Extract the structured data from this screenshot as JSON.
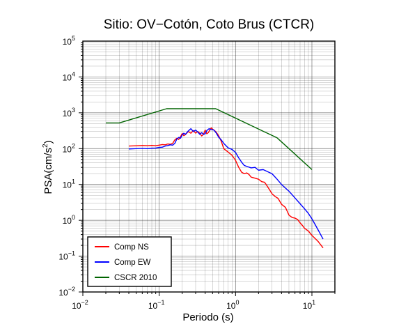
{
  "chart_data": {
    "type": "line",
    "title": "Sitio: OV−Cotón, Coto Brus (CTCR)",
    "xlabel": "Periodo (s)",
    "ylabel_base": "PSA(cm/s",
    "ylabel_exp": "2",
    "ylabel_close": ")",
    "x_scale": "log",
    "y_scale": "log",
    "xlim": [
      0.01,
      20
    ],
    "ylim": [
      0.01,
      100000
    ],
    "grid": true,
    "legend_position": "bottom-left",
    "x_ticks": [
      {
        "base": "10",
        "exp": "−2",
        "value": 0.01
      },
      {
        "base": "10",
        "exp": "−1",
        "value": 0.1
      },
      {
        "base": "10",
        "exp": "0",
        "value": 1
      },
      {
        "base": "10",
        "exp": "1",
        "value": 10
      }
    ],
    "y_ticks": [
      {
        "base": "10",
        "exp": "−2",
        "value": 0.01
      },
      {
        "base": "10",
        "exp": "−1",
        "value": 0.1
      },
      {
        "base": "10",
        "exp": "0",
        "value": 1
      },
      {
        "base": "10",
        "exp": "1",
        "value": 10
      },
      {
        "base": "10",
        "exp": "2",
        "value": 100
      },
      {
        "base": "10",
        "exp": "3",
        "value": 1000
      },
      {
        "base": "10",
        "exp": "4",
        "value": 10000
      },
      {
        "base": "10",
        "exp": "5",
        "value": 100000
      }
    ],
    "series": [
      {
        "name": "Comp NS",
        "color": "#ff0000",
        "points": [
          [
            0.04,
            118
          ],
          [
            0.05,
            120
          ],
          [
            0.06,
            122
          ],
          [
            0.07,
            121
          ],
          [
            0.08,
            123
          ],
          [
            0.09,
            121
          ],
          [
            0.1,
            125
          ],
          [
            0.11,
            130
          ],
          [
            0.12,
            128
          ],
          [
            0.13,
            135
          ],
          [
            0.14,
            132
          ],
          [
            0.15,
            140
          ],
          [
            0.16,
            175
          ],
          [
            0.17,
            195
          ],
          [
            0.18,
            180
          ],
          [
            0.19,
            215
          ],
          [
            0.2,
            265
          ],
          [
            0.21,
            230
          ],
          [
            0.22,
            245
          ],
          [
            0.24,
            300
          ],
          [
            0.26,
            270
          ],
          [
            0.28,
            320
          ],
          [
            0.3,
            270
          ],
          [
            0.32,
            300
          ],
          [
            0.34,
            270
          ],
          [
            0.36,
            225
          ],
          [
            0.38,
            250
          ],
          [
            0.4,
            330
          ],
          [
            0.42,
            260
          ],
          [
            0.44,
            280
          ],
          [
            0.46,
            330
          ],
          [
            0.48,
            380
          ],
          [
            0.5,
            350
          ],
          [
            0.55,
            300
          ],
          [
            0.6,
            230
          ],
          [
            0.65,
            160
          ],
          [
            0.7,
            100
          ],
          [
            0.8,
            80
          ],
          [
            0.9,
            65
          ],
          [
            1.0,
            47
          ],
          [
            1.1,
            30
          ],
          [
            1.2,
            22
          ],
          [
            1.3,
            20
          ],
          [
            1.4,
            21
          ],
          [
            1.5,
            19
          ],
          [
            1.6,
            16
          ],
          [
            1.8,
            15
          ],
          [
            2.0,
            14
          ],
          [
            2.2,
            12
          ],
          [
            2.4,
            11.5
          ],
          [
            2.6,
            9
          ],
          [
            2.8,
            7
          ],
          [
            3.0,
            5.5
          ],
          [
            3.3,
            4.6
          ],
          [
            3.6,
            4.1
          ],
          [
            4.0,
            2.8
          ],
          [
            4.5,
            2.3
          ],
          [
            5.0,
            1.4
          ],
          [
            5.5,
            1.2
          ],
          [
            6.0,
            1.15
          ],
          [
            6.5,
            1.05
          ],
          [
            7.0,
            0.85
          ],
          [
            7.5,
            0.72
          ],
          [
            8.0,
            0.6
          ],
          [
            9.0,
            0.5
          ],
          [
            10.0,
            0.38
          ],
          [
            12.0,
            0.26
          ],
          [
            14.0,
            0.17
          ]
        ]
      },
      {
        "name": "Comp EW",
        "color": "#0000ff",
        "points": [
          [
            0.04,
            98
          ],
          [
            0.05,
            100
          ],
          [
            0.06,
            102
          ],
          [
            0.07,
            100
          ],
          [
            0.08,
            103
          ],
          [
            0.09,
            104
          ],
          [
            0.1,
            108
          ],
          [
            0.11,
            110
          ],
          [
            0.12,
            118
          ],
          [
            0.13,
            122
          ],
          [
            0.14,
            128
          ],
          [
            0.15,
            125
          ],
          [
            0.16,
            140
          ],
          [
            0.17,
            185
          ],
          [
            0.18,
            205
          ],
          [
            0.19,
            195
          ],
          [
            0.2,
            240
          ],
          [
            0.21,
            270
          ],
          [
            0.22,
            250
          ],
          [
            0.24,
            310
          ],
          [
            0.26,
            360
          ],
          [
            0.28,
            300
          ],
          [
            0.3,
            330
          ],
          [
            0.32,
            290
          ],
          [
            0.34,
            250
          ],
          [
            0.36,
            280
          ],
          [
            0.38,
            250
          ],
          [
            0.4,
            260
          ],
          [
            0.42,
            320
          ],
          [
            0.45,
            360
          ],
          [
            0.48,
            340
          ],
          [
            0.52,
            330
          ],
          [
            0.56,
            270
          ],
          [
            0.6,
            210
          ],
          [
            0.65,
            175
          ],
          [
            0.7,
            140
          ],
          [
            0.8,
            105
          ],
          [
            0.9,
            95
          ],
          [
            1.0,
            78
          ],
          [
            1.1,
            55
          ],
          [
            1.2,
            42
          ],
          [
            1.3,
            34
          ],
          [
            1.4,
            32
          ],
          [
            1.6,
            29
          ],
          [
            1.8,
            30
          ],
          [
            2.0,
            25
          ],
          [
            2.3,
            26
          ],
          [
            2.6,
            23
          ],
          [
            3.0,
            20
          ],
          [
            3.5,
            14
          ],
          [
            4.0,
            10
          ],
          [
            5.0,
            6.5
          ],
          [
            6.0,
            4.2
          ],
          [
            7.0,
            2.9
          ],
          [
            8.0,
            2.1
          ],
          [
            9.0,
            1.55
          ],
          [
            10.0,
            1.1
          ],
          [
            12.0,
            0.55
          ],
          [
            14.0,
            0.3
          ]
        ]
      },
      {
        "name": "CSCR 2010",
        "color": "#006400",
        "points": [
          [
            0.02,
            520
          ],
          [
            0.03,
            520
          ],
          [
            0.125,
            1300
          ],
          [
            0.55,
            1300
          ],
          [
            3.5,
            200
          ],
          [
            10.0,
            26
          ]
        ]
      }
    ]
  }
}
